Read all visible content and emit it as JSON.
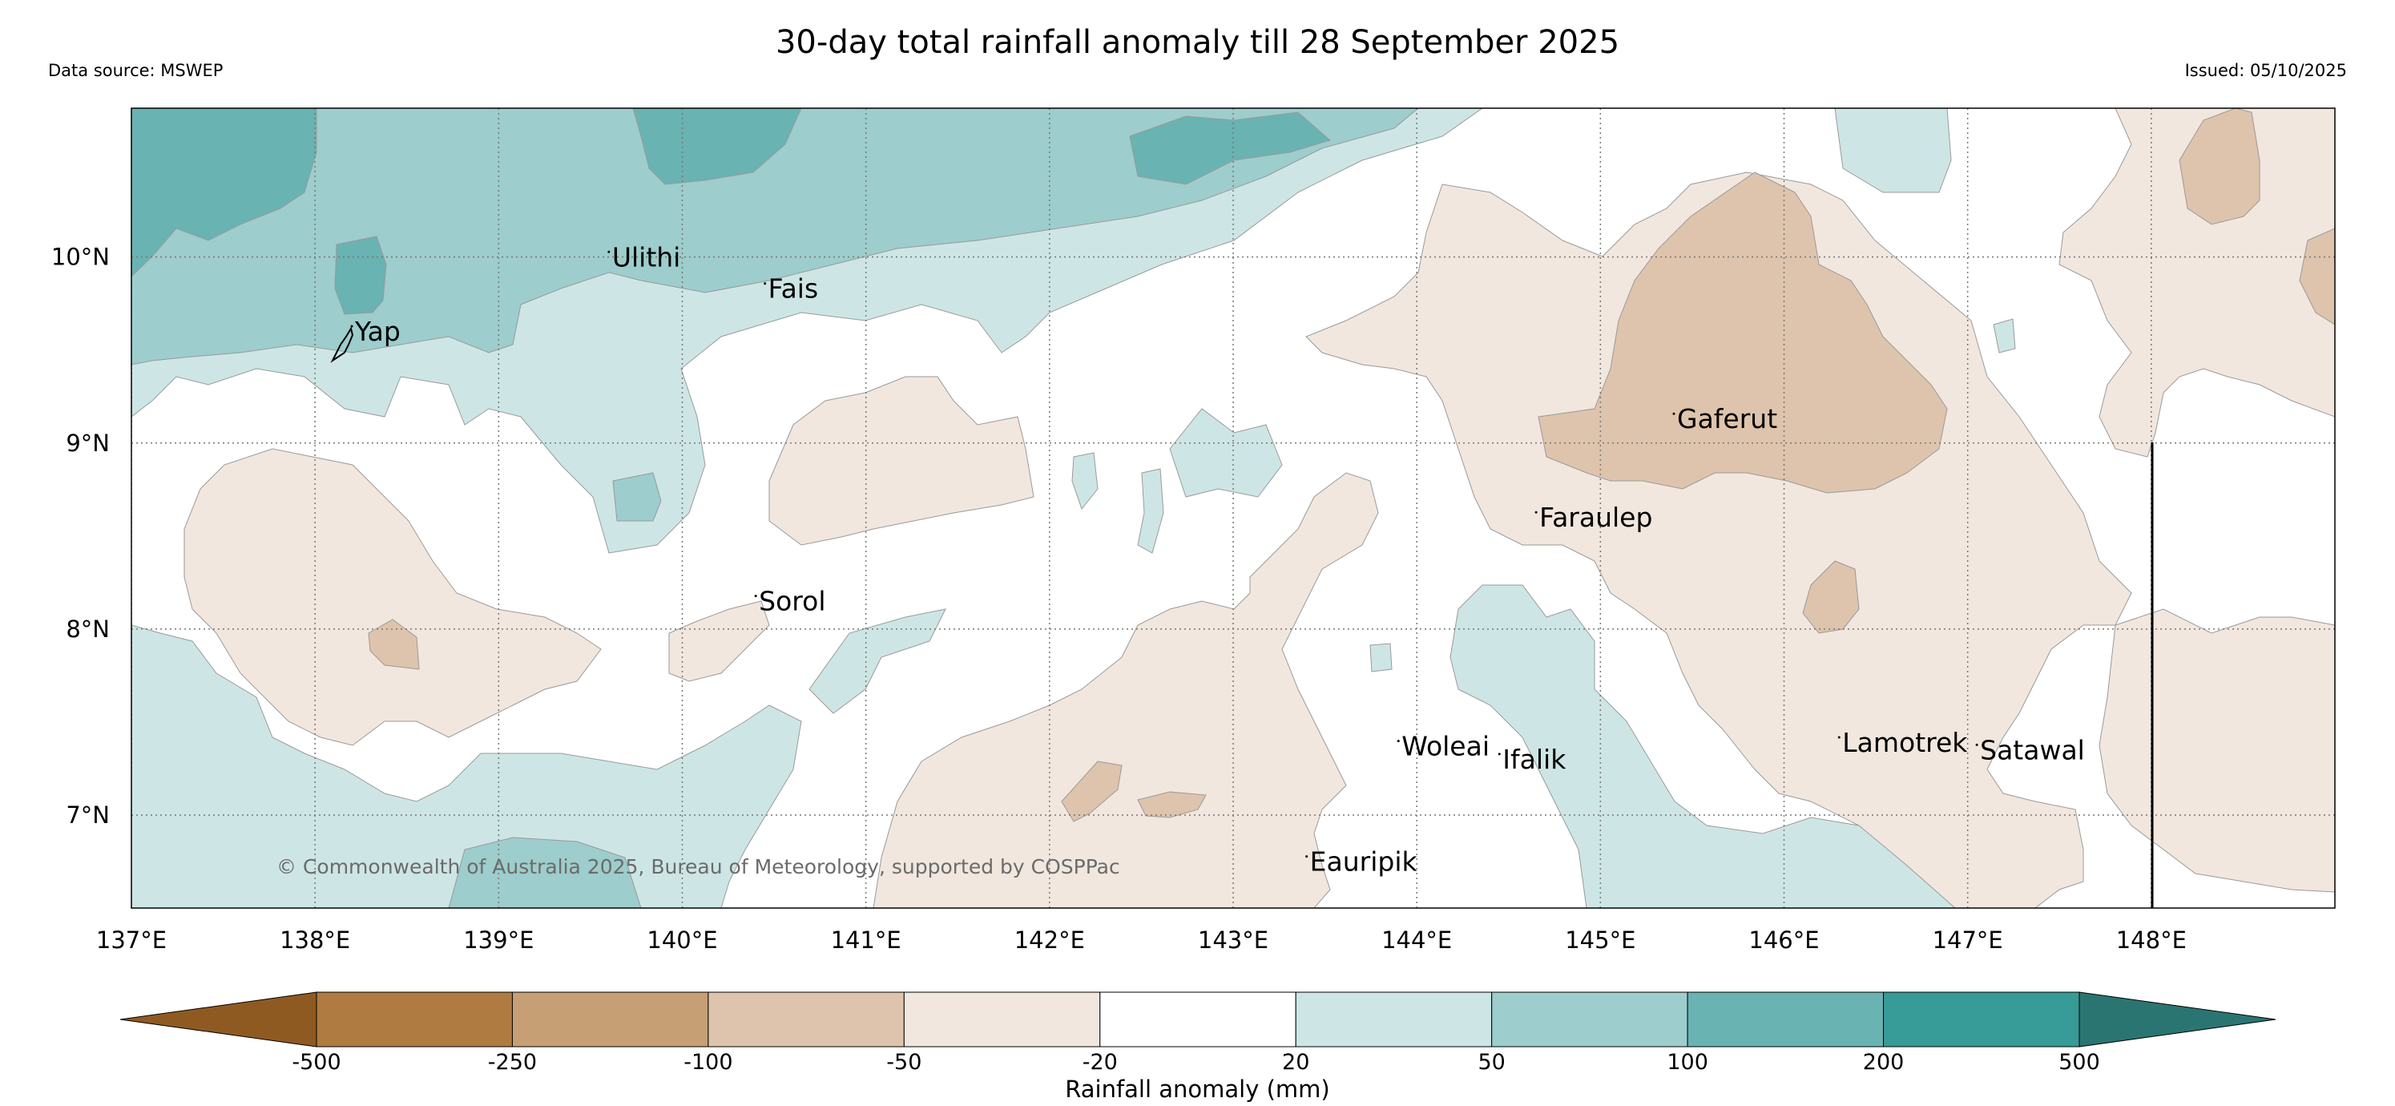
{
  "title": "30-day total rainfall anomaly till 28 September 2025",
  "data_source": "Data source: MSWEP",
  "issued": "Issued: 05/10/2025",
  "copyright": "© Commonwealth of Australia 2025, Bureau of Meteorology, supported by COSPPac",
  "map": {
    "lon_range": [
      137,
      149
    ],
    "lat_range": [
      6.5,
      10.8
    ],
    "lon_ticks": [
      "137°E",
      "138°E",
      "139°E",
      "140°E",
      "141°E",
      "142°E",
      "143°E",
      "144°E",
      "145°E",
      "146°E",
      "147°E",
      "148°E"
    ],
    "lat_ticks": [
      "10°N",
      "9°N",
      "8°N",
      "7°N"
    ],
    "places": [
      {
        "name": "Yap",
        "lon": 138.2,
        "lat": 9.55
      },
      {
        "name": "Ulithi",
        "lon": 139.6,
        "lat": 9.95
      },
      {
        "name": "Fais",
        "lon": 140.45,
        "lat": 9.78
      },
      {
        "name": "Gaferut",
        "lon": 145.4,
        "lat": 9.08
      },
      {
        "name": "Faraulep",
        "lon": 144.65,
        "lat": 8.55
      },
      {
        "name": "Sorol",
        "lon": 140.4,
        "lat": 8.1
      },
      {
        "name": "Woleai",
        "lon": 143.9,
        "lat": 7.32
      },
      {
        "name": "Ifalik",
        "lon": 144.45,
        "lat": 7.25
      },
      {
        "name": "Lamotrek",
        "lon": 146.3,
        "lat": 7.34
      },
      {
        "name": "Satawal",
        "lon": 147.05,
        "lat": 7.3
      },
      {
        "name": "Eauripik",
        "lon": 143.4,
        "lat": 6.7
      }
    ]
  },
  "colorbar": {
    "label": "Rainfall anomaly (mm)",
    "ticks": [
      "-500",
      "-250",
      "-100",
      "-50",
      "-20",
      "20",
      "50",
      "100",
      "200",
      "500"
    ],
    "colors": [
      "#8f5a22",
      "#b07b40",
      "#c79f75",
      "#dec4ac",
      "#f1e7de",
      "#ffffff",
      "#cde6e5",
      "#9dcdcc",
      "#69b3b2",
      "#379b97",
      "#2a7572"
    ]
  }
}
